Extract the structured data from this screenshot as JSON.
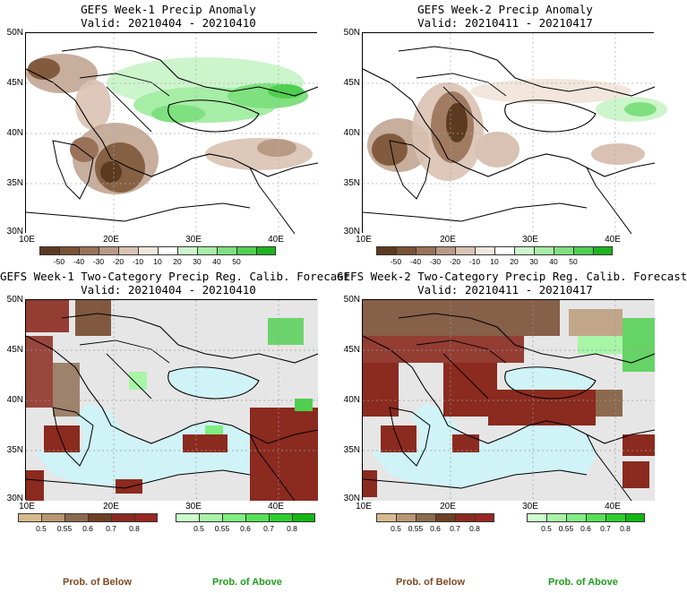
{
  "panels": [
    {
      "title": "GEFS Week-1 Precip Anomaly",
      "valid": "Valid: 20210404 - 20210410"
    },
    {
      "title": "GEFS Week-2 Precip Anomaly",
      "valid": "Valid: 20210411 - 20210417"
    },
    {
      "title": "GEFS Week-1 Two-Category Precip Reg. Calib. Forecast",
      "valid": "Valid: 20210404 - 20210410"
    },
    {
      "title": "GEFS Week-2 Two-Category Precip Reg. Calib. Forecast",
      "valid": "Valid: 20210411 - 20210417"
    }
  ],
  "lat_labels": [
    "50N",
    "45N",
    "40N",
    "35N",
    "30N"
  ],
  "lon_labels": [
    "10E",
    "20E",
    "30E",
    "40E"
  ],
  "anomaly_colorbar": {
    "labels": [
      "-50",
      "-40",
      "-30",
      "-20",
      "-10",
      "10",
      "20",
      "30",
      "40",
      "50"
    ],
    "colors": [
      "#5c3a21",
      "#7a5234",
      "#9a7159",
      "#b99a85",
      "#d9c2b3",
      "#f2e6dd",
      "#ffffff",
      "#ccf5cc",
      "#a6eda6",
      "#7fe07f",
      "#4fcf4f",
      "#1fb31f"
    ]
  },
  "below_colorbar": {
    "labels": [
      "0.5",
      "0.55",
      "0.6",
      "0.7",
      "0.8"
    ],
    "colors": [
      "#d8b98f",
      "#b89672",
      "#8c6a4e",
      "#6e3f22",
      "#8b2a1f",
      "#9b2622"
    ]
  },
  "above_colorbar": {
    "labels": [
      "0.5",
      "0.55",
      "0.6",
      "0.7",
      "0.8"
    ],
    "colors": [
      "#ccffcc",
      "#a8f5a8",
      "#80ee80",
      "#55e055",
      "#2fce2f",
      "#12b812"
    ]
  },
  "prob_below": "Prob. of Below",
  "prob_above": "Prob. of Above",
  "colors": {
    "land_gray": "#e6e6e6",
    "sea": "#cff3f7",
    "below": "#8b2a1f",
    "above": "#4fcf4f",
    "prob_below_text": "#7b4a22",
    "prob_above_text": "#1e9e1e"
  }
}
